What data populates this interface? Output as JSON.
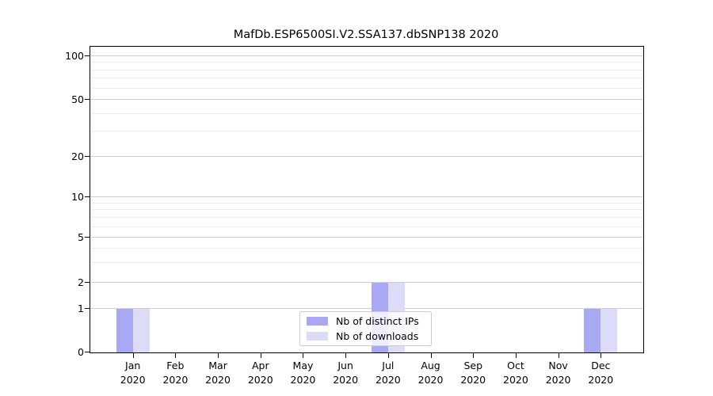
{
  "title": "MafDb.ESP6500SI.V2.SSA137.dbSNP138 2020",
  "colors": {
    "distinct_ips": "#a9a9f3",
    "downloads": "#dcdcf9",
    "grid_major": "#cfcfcf",
    "grid_minor": "#ededed",
    "spine": "#000000"
  },
  "legend": {
    "items": [
      {
        "label": "Nb of distinct IPs",
        "color": "distinct_ips"
      },
      {
        "label": "Nb of downloads",
        "color": "downloads"
      }
    ]
  },
  "y_axis": {
    "major_ticks": [
      0,
      1,
      2,
      5,
      10,
      20,
      50,
      100
    ],
    "minor_ticks": [
      3,
      4,
      6,
      7,
      8,
      9,
      30,
      40,
      60,
      70,
      80,
      90
    ]
  },
  "x_axis": {
    "categories": [
      {
        "month": "Jan",
        "year": "2020"
      },
      {
        "month": "Feb",
        "year": "2020"
      },
      {
        "month": "Mar",
        "year": "2020"
      },
      {
        "month": "Apr",
        "year": "2020"
      },
      {
        "month": "May",
        "year": "2020"
      },
      {
        "month": "Jun",
        "year": "2020"
      },
      {
        "month": "Jul",
        "year": "2020"
      },
      {
        "month": "Aug",
        "year": "2020"
      },
      {
        "month": "Sep",
        "year": "2020"
      },
      {
        "month": "Oct",
        "year": "2020"
      },
      {
        "month": "Nov",
        "year": "2020"
      },
      {
        "month": "Dec",
        "year": "2020"
      }
    ]
  },
  "chart_data": {
    "type": "bar",
    "title": "MafDb.ESP6500SI.V2.SSA137.dbSNP138 2020",
    "categories": [
      "Jan 2020",
      "Feb 2020",
      "Mar 2020",
      "Apr 2020",
      "May 2020",
      "Jun 2020",
      "Jul 2020",
      "Aug 2020",
      "Sep 2020",
      "Oct 2020",
      "Nov 2020",
      "Dec 2020"
    ],
    "series": [
      {
        "name": "Nb of distinct IPs",
        "values": [
          1,
          0,
          0,
          0,
          0,
          0,
          2,
          0,
          0,
          0,
          0,
          1
        ]
      },
      {
        "name": "Nb of downloads",
        "values": [
          1,
          0,
          0,
          0,
          0,
          0,
          2,
          0,
          0,
          0,
          0,
          1
        ]
      }
    ],
    "xlabel": "",
    "ylabel": "",
    "yscale": "log-like",
    "y_ticks": [
      0,
      1,
      2,
      5,
      10,
      20,
      50,
      100
    ],
    "ylim": [
      0,
      110
    ],
    "grid": "horizontal major and minor",
    "legend_position": "lower center inside plot"
  }
}
